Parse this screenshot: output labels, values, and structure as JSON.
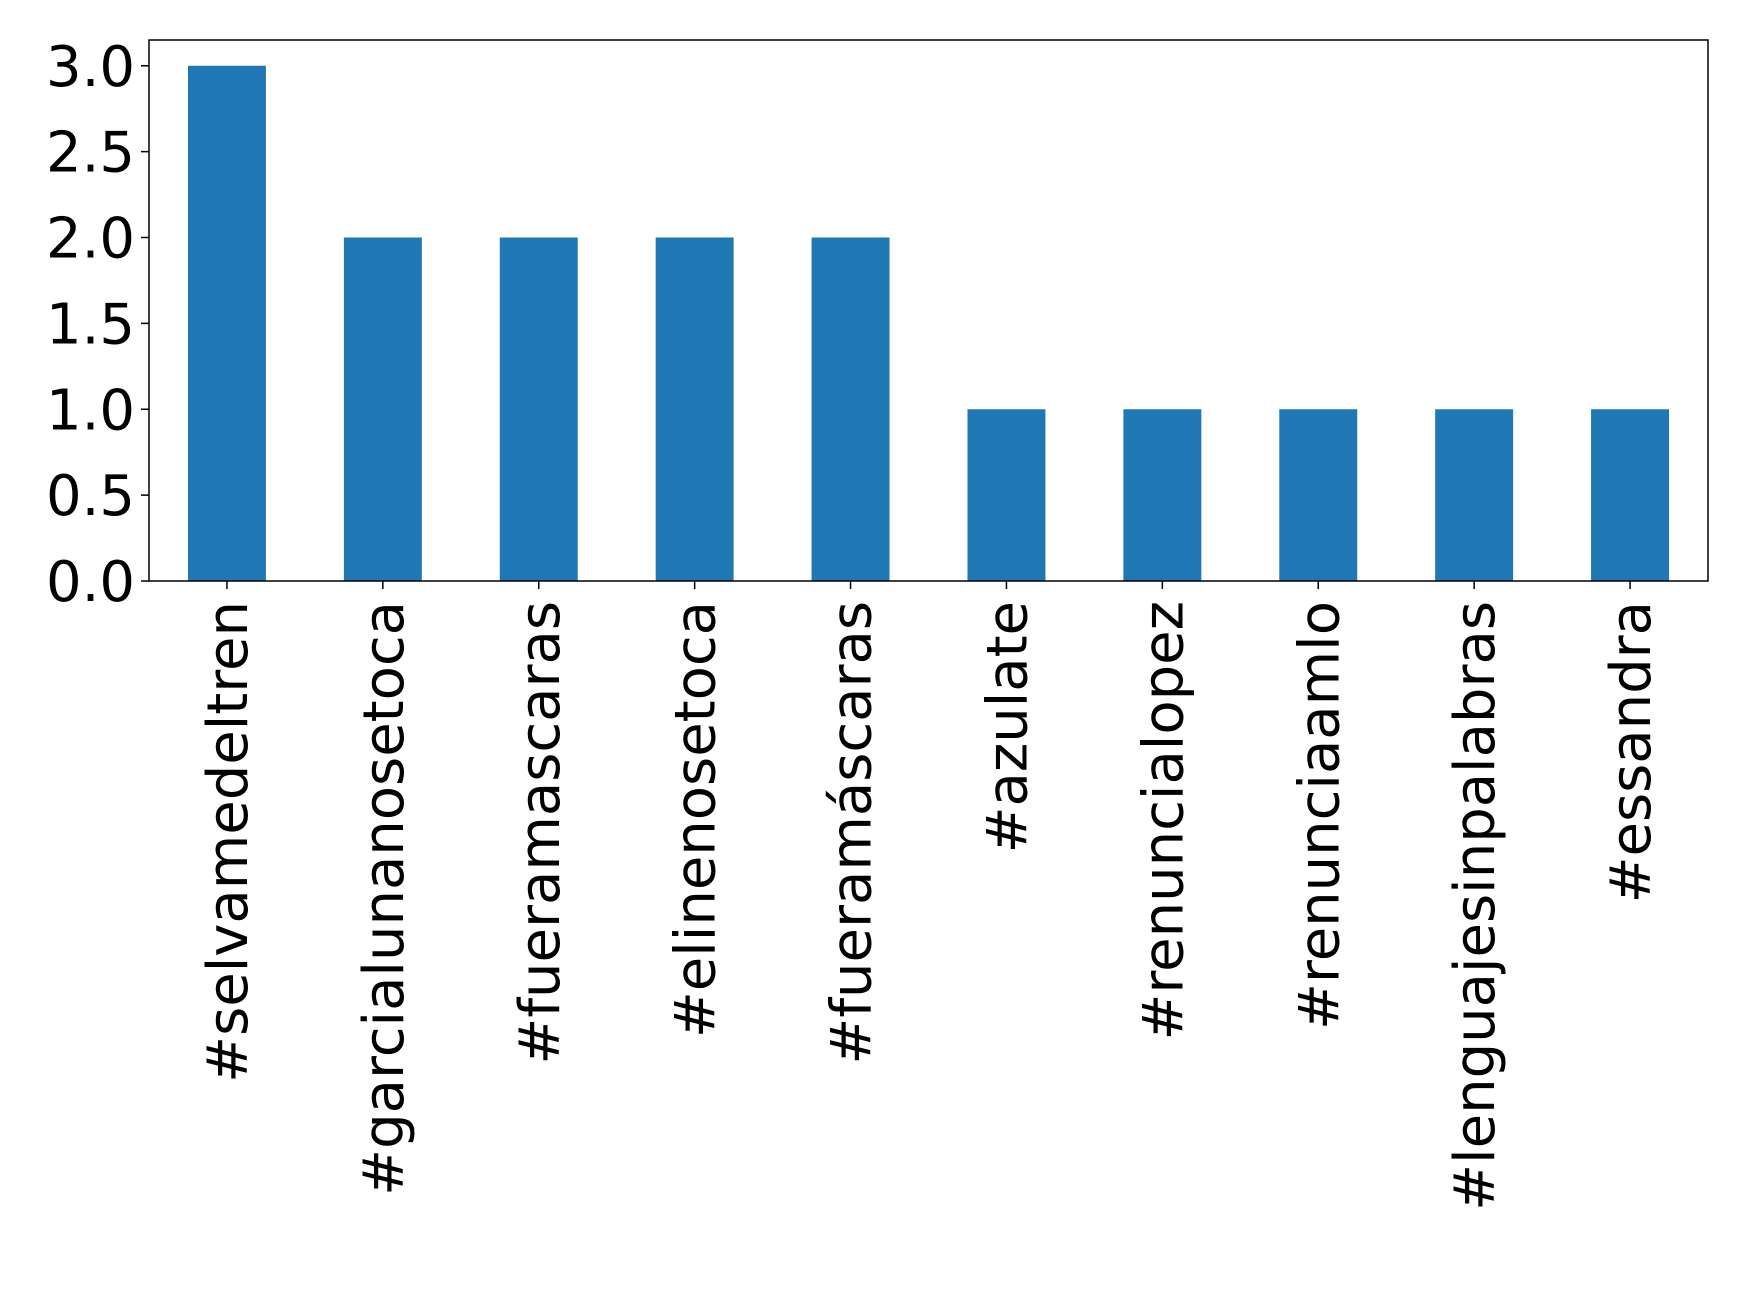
{
  "chart_data": {
    "type": "bar",
    "categories": [
      "#selvamedeltren",
      "#garcialunanosetoca",
      "#fueramascaras",
      "#elinenosetoca",
      "#fueramáscaras",
      "#azulate",
      "#renuncialopez",
      "#renunciaamlo",
      "#lenguajesinpalabras",
      "#essandra"
    ],
    "values": [
      3,
      2,
      2,
      2,
      2,
      1,
      1,
      1,
      1,
      1
    ],
    "color": "#1f77b4",
    "ylim": [
      0,
      3.15
    ],
    "yticks": [
      {
        "value": 0,
        "label": "0.0"
      },
      0.5,
      {
        "value": 1,
        "label": "1.0"
      },
      1.5,
      {
        "value": 2,
        "label": "2.0"
      },
      2.5,
      {
        "value": 3,
        "label": "3.0"
      }
    ],
    "grid": false
  }
}
